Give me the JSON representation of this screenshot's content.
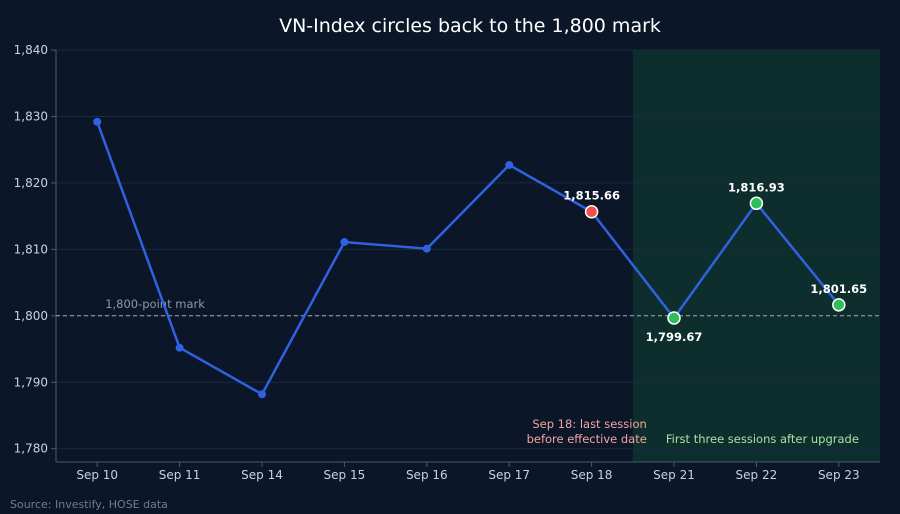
{
  "chart_data": {
    "type": "line",
    "title": "VN-Index circles back to the 1,800 mark",
    "xlabel": "",
    "ylabel": "",
    "categories": [
      "Sep 10",
      "Sep 11",
      "Sep 14",
      "Sep 15",
      "Sep 16",
      "Sep 17",
      "Sep 18",
      "Sep 21",
      "Sep 22",
      "Sep 23"
    ],
    "series": [
      {
        "values": [
          1829.2,
          1795.2,
          1788.2,
          1811.1,
          1810.1,
          1822.7,
          1815.66,
          1799.67,
          1816.93,
          1801.65
        ]
      }
    ],
    "ylim": [
      1778,
      1840
    ],
    "yticks": [
      1780,
      1790,
      1800,
      1810,
      1820,
      1830,
      1840
    ],
    "ytick_labels": [
      "1,780",
      "1,790",
      "1,800",
      "1,810",
      "1,820",
      "1,830",
      "1,840"
    ],
    "grid": true,
    "reference_line": {
      "value": 1800,
      "label": "1,800-point mark"
    },
    "highlight_region": {
      "from": "Sep 21",
      "to": "Sep 23",
      "label": "First three sessions after upgrade"
    },
    "highlighted_points": [
      {
        "category": "Sep 18",
        "value": 1815.66,
        "label": "1,815.66",
        "color": "#ef4f4f"
      },
      {
        "category": "Sep 21",
        "value": 1799.67,
        "label": "1,799.67",
        "color": "#2fbf5a"
      },
      {
        "category": "Sep 22",
        "value": 1816.93,
        "label": "1,816.93",
        "color": "#2fbf5a"
      },
      {
        "category": "Sep 23",
        "value": 1801.65,
        "label": "1,801.65",
        "color": "#2fbf5a"
      }
    ],
    "annotation_sep18": [
      "Sep 18: last session",
      "before effective date"
    ],
    "source": "Source: Investify, HOSE data",
    "colors": {
      "line": "#2f62e0",
      "highlight_fill": "#0f2f2e",
      "grid": "#1a2a40",
      "reference": "#b8c2d0"
    }
  }
}
